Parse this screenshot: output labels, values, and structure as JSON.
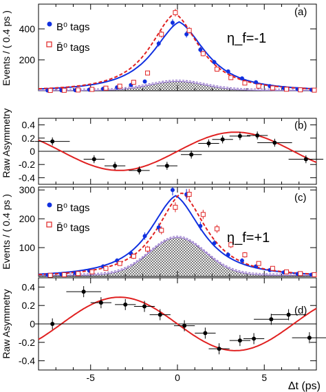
{
  "figure": {
    "xlabel": "Δt (ps)"
  },
  "colors": {
    "b0": "#1030e0",
    "b0bar": "#e02020",
    "asym": "#e02020",
    "bkg": "#9070c8",
    "points": "#000000"
  },
  "chart_data": [
    {
      "type": "scatter",
      "panel_label": "(a)",
      "annotation": "η_f=-1",
      "ylabel": "Events / ( 0.4 ps )",
      "xlim": [
        -8,
        8
      ],
      "ylim": [
        0,
        560
      ],
      "yticks": [
        200,
        400
      ],
      "legend": {
        "position": "top-left",
        "entries": [
          "B⁰  tags",
          "B̄⁰  tags"
        ]
      },
      "series": [
        {
          "name": "B⁰  tags",
          "color": "#1030e0",
          "marker": "filled-circle",
          "x": [
            -7.4,
            -6.6,
            -5.8,
            -5.0,
            -4.2,
            -3.4,
            -2.6,
            -1.8,
            -1.0,
            -0.2,
            0.6,
            1.4,
            2.2,
            3.0,
            3.8,
            4.6,
            5.4,
            6.2,
            7.0,
            7.8
          ],
          "y": [
            2,
            3,
            4,
            7,
            13,
            22,
            37,
            60,
            305,
            440,
            365,
            265,
            185,
            125,
            80,
            55,
            30,
            18,
            10,
            6
          ]
        },
        {
          "name": "B̄⁰  tags",
          "color": "#e02020",
          "marker": "open-square",
          "x": [
            -7.4,
            -6.6,
            -5.8,
            -5.0,
            -4.2,
            -3.4,
            -2.6,
            -1.8,
            -1.0,
            -0.2,
            0.6,
            1.4,
            2.2,
            3.0,
            3.8,
            4.6,
            5.4,
            6.2,
            7.0,
            7.8
          ],
          "y": [
            2,
            3,
            5,
            9,
            17,
            30,
            55,
            115,
            365,
            505,
            390,
            240,
            140,
            85,
            50,
            30,
            18,
            10,
            6,
            4
          ]
        }
      ]
    },
    {
      "type": "scatter",
      "panel_label": "(b)",
      "ylabel": "Raw Asymmetry",
      "xlim": [
        -8,
        8
      ],
      "ylim": [
        -0.5,
        0.5
      ],
      "yticks": [
        -0.4,
        -0.2,
        0,
        0.2,
        0.4
      ],
      "x": [
        -7.2,
        -4.8,
        -3.6,
        -2.2,
        -0.6,
        0.8,
        1.8,
        2.6,
        3.6,
        4.6,
        5.6,
        7.4
      ],
      "y": [
        0.15,
        -0.12,
        -0.22,
        -0.29,
        -0.22,
        -0.05,
        0.12,
        0.18,
        0.23,
        0.24,
        0.13,
        -0.12
      ],
      "fit": "asymmetry"
    },
    {
      "type": "scatter",
      "panel_label": "(c)",
      "annotation": "η_f=+1",
      "ylabel": "Events / ( 0.4 ps )",
      "xlim": [
        -8,
        8
      ],
      "ylim": [
        0,
        310
      ],
      "yticks": [
        100,
        200,
        300
      ],
      "legend": {
        "position": "top-left",
        "entries": [
          "B⁰  tags",
          "B̄⁰  tags"
        ]
      },
      "series": [
        {
          "name": "B⁰  tags",
          "color": "#1030e0",
          "marker": "filled-circle",
          "x": [
            -7.4,
            -6.6,
            -5.8,
            -5.0,
            -4.2,
            -3.4,
            -2.6,
            -1.8,
            -1.0,
            -0.2,
            0.6,
            1.4,
            2.2,
            3.0,
            3.8,
            4.6,
            5.4,
            6.2,
            7.0,
            7.8
          ],
          "y": [
            5,
            8,
            12,
            20,
            35,
            55,
            80,
            140,
            170,
            300,
            285,
            175,
            115,
            75,
            55,
            35,
            22,
            14,
            9,
            6
          ]
        },
        {
          "name": "B̄⁰  tags",
          "color": "#e02020",
          "marker": "open-square",
          "x": [
            -7.4,
            -6.6,
            -5.8,
            -5.0,
            -4.2,
            -3.4,
            -2.6,
            -1.8,
            -1.0,
            -0.2,
            0.6,
            1.4,
            2.2,
            3.0,
            3.8,
            4.6,
            5.4,
            6.2,
            7.0,
            7.8
          ],
          "y": [
            4,
            6,
            10,
            16,
            28,
            45,
            70,
            95,
            160,
            240,
            285,
            215,
            165,
            110,
            75,
            45,
            28,
            16,
            10,
            6
          ]
        }
      ]
    },
    {
      "type": "scatter",
      "panel_label": "(d)",
      "ylabel": "Raw Asymmetry",
      "xlim": [
        -8,
        8
      ],
      "ylim": [
        -0.5,
        0.5
      ],
      "yticks": [
        -0.4,
        -0.2,
        0,
        0.2,
        0.4
      ],
      "x": [
        -7.2,
        -5.4,
        -4.4,
        -3.0,
        -1.9,
        -1.0,
        0.4,
        1.6,
        2.4,
        3.6,
        4.4,
        5.4,
        6.4,
        7.6
      ],
      "y": [
        0.0,
        0.35,
        0.23,
        0.21,
        0.19,
        0.1,
        -0.02,
        -0.1,
        -0.27,
        -0.18,
        -0.16,
        0.05,
        0.1,
        -0.15
      ],
      "fit": "asymmetry-inverted"
    }
  ]
}
